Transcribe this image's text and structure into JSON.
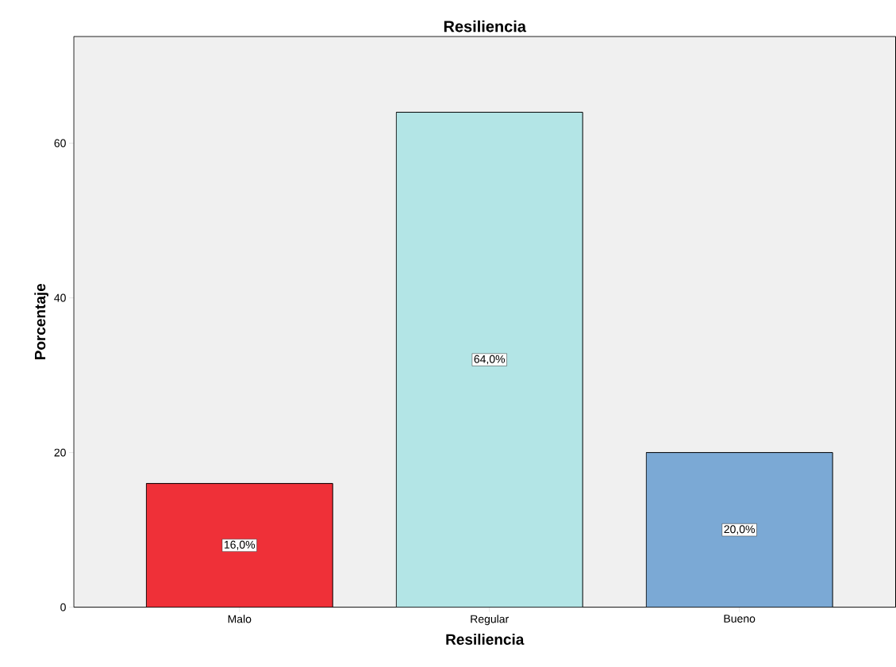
{
  "chart_data": {
    "type": "bar",
    "title": "Resiliencia",
    "xlabel": "Resiliencia",
    "ylabel": "Porcentaje",
    "categories": [
      "Malo",
      "Regular",
      "Bueno"
    ],
    "values": [
      16,
      64,
      20
    ],
    "colors": [
      "#ef3038",
      "#b3e5e6",
      "#7ba9d5"
    ],
    "value_labels": [
      "16,0%",
      "64,0%",
      "20,0%"
    ],
    "ylim": [
      0,
      73.8
    ],
    "yticks": [
      0,
      20,
      40,
      60
    ],
    "grid": false
  }
}
